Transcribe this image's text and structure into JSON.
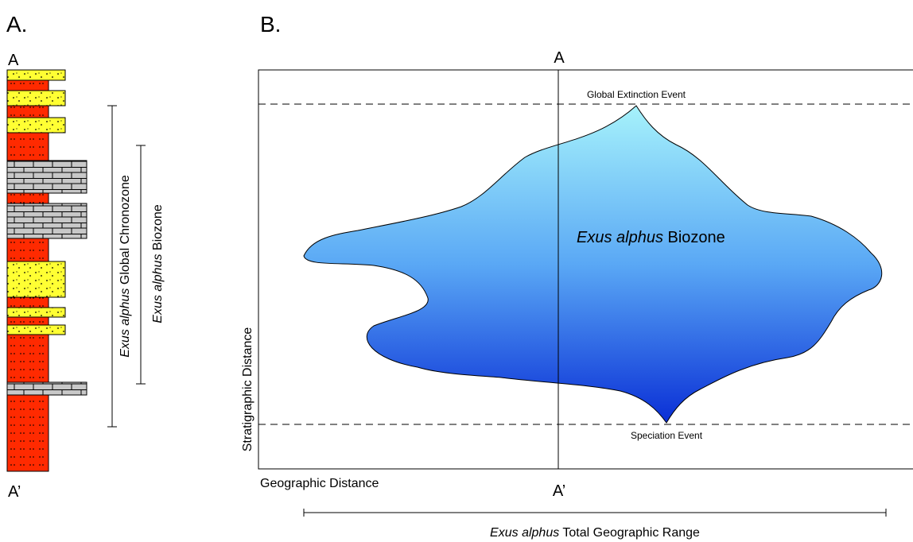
{
  "panel_a": {
    "label": "A.",
    "top_label": "A",
    "bottom_label": "A’",
    "chronozone": {
      "species": "Exus alphus",
      "suffix": " Global Chronozone"
    },
    "biozone": {
      "species": "Exus alphus",
      "suffix": " Biozone"
    },
    "lithologies": [
      "sandstone",
      "mudstone",
      "limestone"
    ]
  },
  "panel_b": {
    "label": "B.",
    "section_top_label": "A",
    "section_bottom_label": "A’",
    "extinction_label": "Global Extinction Event",
    "speciation_label": "Speciation Event",
    "biozone": {
      "species": "Exus alphus",
      "suffix": " Biozone"
    },
    "y_axis_label": "Stratigraphic Distance",
    "x_axis_label": "Geographic Distance",
    "range": {
      "species": "Exus alphus",
      "suffix": " Total Geographic Range"
    }
  },
  "colors": {
    "sandstone": "#ffff33",
    "mudstone": "#ff2a00",
    "limestone": "#c8c8c8",
    "biozone_top": "#a6f2fb",
    "biozone_mid": "#5aa8f5",
    "biozone_bottom": "#0a2fd6"
  }
}
